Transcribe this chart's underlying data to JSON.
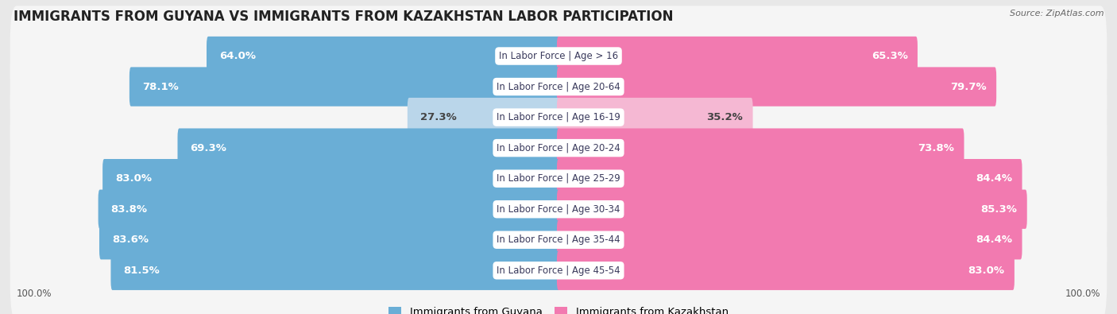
{
  "title": "IMMIGRANTS FROM GUYANA VS IMMIGRANTS FROM KAZAKHSTAN LABOR PARTICIPATION",
  "source": "Source: ZipAtlas.com",
  "categories": [
    "In Labor Force | Age > 16",
    "In Labor Force | Age 20-64",
    "In Labor Force | Age 16-19",
    "In Labor Force | Age 20-24",
    "In Labor Force | Age 25-29",
    "In Labor Force | Age 30-34",
    "In Labor Force | Age 35-44",
    "In Labor Force | Age 45-54"
  ],
  "guyana_values": [
    64.0,
    78.1,
    27.3,
    69.3,
    83.0,
    83.8,
    83.6,
    81.5
  ],
  "kazakhstan_values": [
    65.3,
    79.7,
    35.2,
    73.8,
    84.4,
    85.3,
    84.4,
    83.0
  ],
  "guyana_color": "#6aaed6",
  "guyana_color_light": "#bad6ea",
  "kazakhstan_color": "#f27ab0",
  "kazakhstan_color_light": "#f5b8d3",
  "background_color": "#e8e8e8",
  "row_bg_color": "#f5f5f5",
  "row_bg_color2": "#ebebeb",
  "label_fontsize": 9.5,
  "title_fontsize": 12,
  "legend_guyana": "Immigrants from Guyana",
  "legend_kazakhstan": "Immigrants from Kazakhstan"
}
